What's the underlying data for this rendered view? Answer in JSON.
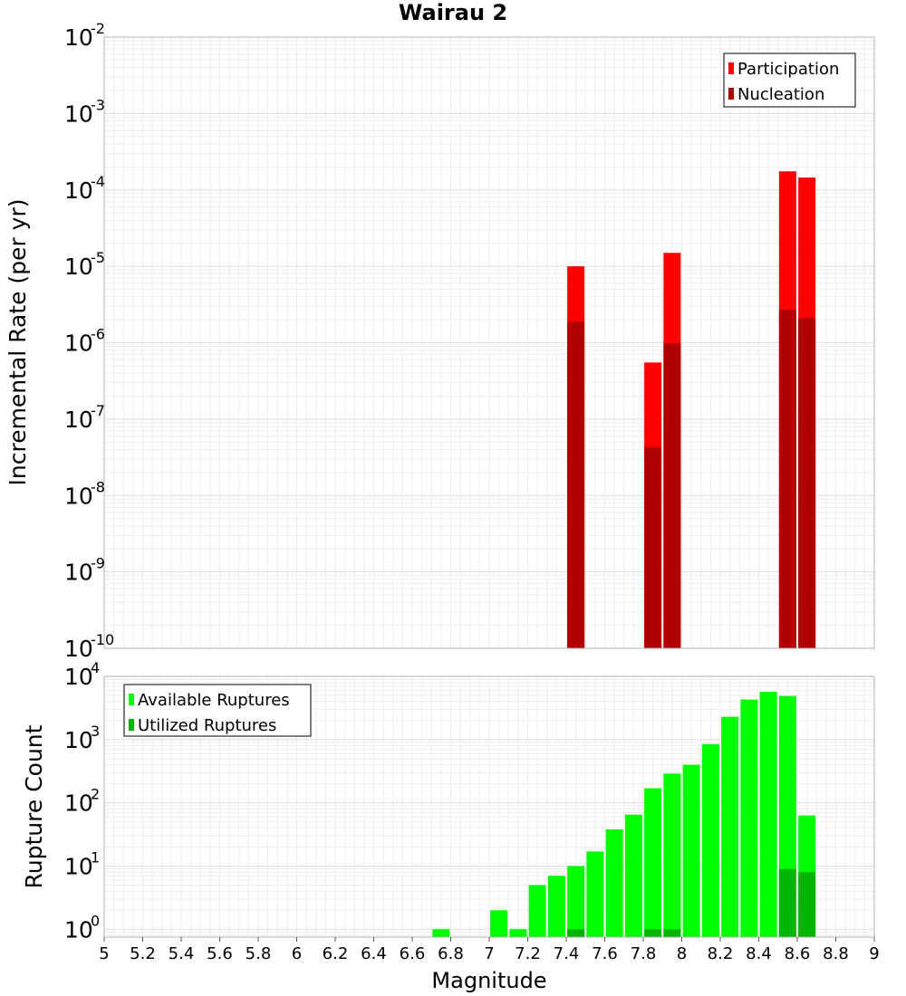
{
  "chart_data": [
    {
      "type": "bar",
      "title": "Wairau 2",
      "ylabel": "Incremental Rate (per yr)",
      "yscale": "log",
      "ylim": [
        1e-10,
        0.01
      ],
      "xlim": [
        5,
        9
      ],
      "y_ticks": [
        {
          "base": "10",
          "exp": "-10"
        },
        {
          "base": "10",
          "exp": "-9"
        },
        {
          "base": "10",
          "exp": "-8"
        },
        {
          "base": "10",
          "exp": "-7"
        },
        {
          "base": "10",
          "exp": "-6"
        },
        {
          "base": "10",
          "exp": "-5"
        },
        {
          "base": "10",
          "exp": "-4"
        },
        {
          "base": "10",
          "exp": "-3"
        },
        {
          "base": "10",
          "exp": "-2"
        }
      ],
      "grid": true,
      "legend_position": "top-right",
      "series": [
        {
          "name": "Participation",
          "color": "#ff0000",
          "x": [
            7.45,
            7.85,
            7.95,
            8.55,
            8.65
          ],
          "values": [
            1e-05,
            5.5e-07,
            1.5e-05,
            0.000175,
            0.000145
          ]
        },
        {
          "name": "Nucleation",
          "color": "#b00000",
          "x": [
            7.45,
            7.85,
            7.95,
            8.55,
            8.65
          ],
          "values": [
            1.9e-06,
            4.3e-08,
            9.8e-07,
            2.7e-06,
            2.1e-06
          ]
        }
      ]
    },
    {
      "type": "bar",
      "xlabel": "Magnitude",
      "ylabel": "Rupture Count",
      "yscale": "log",
      "ylim": [
        0.75,
        10000
      ],
      "xlim": [
        5,
        9
      ],
      "x_ticks": [
        "5",
        "5.2",
        "5.4",
        "5.6",
        "5.8",
        "6",
        "6.2",
        "6.4",
        "6.6",
        "6.8",
        "7",
        "7.2",
        "7.4",
        "7.6",
        "7.8",
        "8",
        "8.2",
        "8.4",
        "8.6",
        "8.8",
        "9"
      ],
      "y_ticks": [
        {
          "base": "10",
          "exp": "0"
        },
        {
          "base": "10",
          "exp": "1"
        },
        {
          "base": "10",
          "exp": "2"
        },
        {
          "base": "10",
          "exp": "3"
        },
        {
          "base": "10",
          "exp": "4"
        }
      ],
      "grid": true,
      "legend_position": "top-left",
      "series": [
        {
          "name": "Available Ruptures",
          "color": "#00ff00",
          "x": [
            6.75,
            7.05,
            7.15,
            7.25,
            7.35,
            7.45,
            7.55,
            7.65,
            7.75,
            7.85,
            7.95,
            8.05,
            8.15,
            8.25,
            8.35,
            8.45,
            8.55,
            8.65
          ],
          "values": [
            1,
            2,
            1,
            5,
            7,
            10,
            17,
            38,
            65,
            170,
            290,
            400,
            850,
            2300,
            4300,
            5700,
            4900,
            63
          ]
        },
        {
          "name": "Utilized Ruptures",
          "color": "#00b400",
          "x": [
            7.45,
            7.85,
            7.95,
            8.55,
            8.65
          ],
          "values": [
            1,
            1,
            1,
            9,
            8
          ]
        }
      ]
    }
  ]
}
